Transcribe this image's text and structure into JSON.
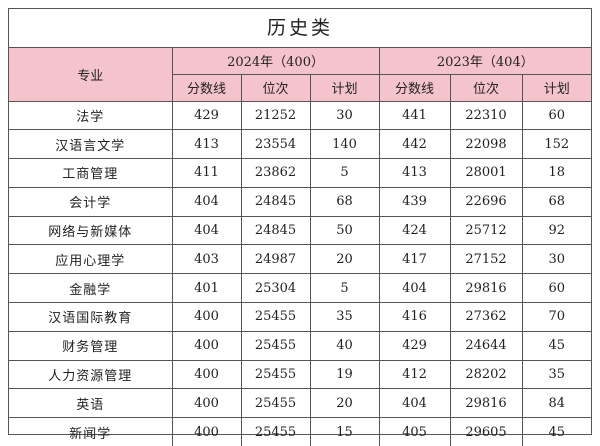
{
  "title": "历史类",
  "header": {
    "major": "专业",
    "year2024": "2024年（400）",
    "year2023": "2023年（404）",
    "cols": [
      "分数线",
      "位次",
      "计划",
      "分数线",
      "位次",
      "计划"
    ]
  },
  "rows": [
    {
      "major": "法学",
      "s24": "429",
      "r24": "21252",
      "p24": "30",
      "s23": "441",
      "r23": "22310",
      "p23": "60"
    },
    {
      "major": "汉语言文学",
      "s24": "413",
      "r24": "23554",
      "p24": "140",
      "s23": "442",
      "r23": "22098",
      "p23": "152"
    },
    {
      "major": "工商管理",
      "s24": "411",
      "r24": "23862",
      "p24": "5",
      "s23": "413",
      "r23": "28001",
      "p23": "18"
    },
    {
      "major": "会计学",
      "s24": "404",
      "r24": "24845",
      "p24": "68",
      "s23": "439",
      "r23": "22696",
      "p23": "68"
    },
    {
      "major": "网络与新媒体",
      "s24": "404",
      "r24": "24845",
      "p24": "50",
      "s23": "424",
      "r23": "25712",
      "p23": "92"
    },
    {
      "major": "应用心理学",
      "s24": "403",
      "r24": "24987",
      "p24": "20",
      "s23": "417",
      "r23": "27152",
      "p23": "30"
    },
    {
      "major": "金融学",
      "s24": "401",
      "r24": "25304",
      "p24": "5",
      "s23": "404",
      "r23": "29816",
      "p23": "60"
    },
    {
      "major": "汉语国际教育",
      "s24": "400",
      "r24": "25455",
      "p24": "35",
      "s23": "416",
      "r23": "27362",
      "p23": "70"
    },
    {
      "major": "财务管理",
      "s24": "400",
      "r24": "25455",
      "p24": "40",
      "s23": "429",
      "r23": "24644",
      "p23": "45"
    },
    {
      "major": "人力资源管理",
      "s24": "400",
      "r24": "25455",
      "p24": "19",
      "s23": "412",
      "r23": "28202",
      "p23": "35"
    },
    {
      "major": "英语",
      "s24": "400",
      "r24": "25455",
      "p24": "20",
      "s23": "404",
      "r23": "29816",
      "p23": "84"
    },
    {
      "major": "新闻学",
      "s24": "400",
      "r24": "25455",
      "p24": "15",
      "s23": "405",
      "r23": "29605",
      "p23": "45"
    }
  ]
}
